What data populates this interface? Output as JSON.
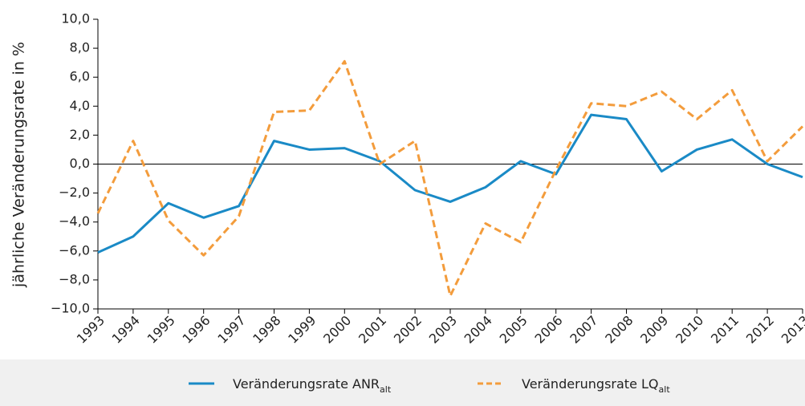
{
  "chart_data": {
    "type": "line",
    "y_label": "jährliche Veränderungsrate in %",
    "categories": [
      "1993",
      "1994",
      "1995",
      "1996",
      "1997",
      "1998",
      "1999",
      "2000",
      "2001",
      "2002",
      "2003",
      "2004",
      "2005",
      "2006",
      "2007",
      "2008",
      "2009",
      "2010",
      "2011",
      "2012",
      "2013"
    ],
    "series": [
      {
        "name": "Veränderungsrate ANR",
        "name_sub": "alt",
        "color": "#1a8ac6",
        "dash": false,
        "values": [
          -6.1,
          -5.0,
          -2.7,
          -3.7,
          -2.9,
          1.6,
          1.0,
          1.1,
          0.2,
          -1.8,
          -2.6,
          -1.6,
          0.2,
          -0.7,
          3.4,
          3.1,
          -0.5,
          1.0,
          1.7,
          0.0,
          -0.9
        ]
      },
      {
        "name": "Veränderungsrate LQ",
        "name_sub": "alt",
        "color": "#f39c3c",
        "dash": true,
        "values": [
          -3.4,
          1.6,
          -3.9,
          -6.3,
          -3.6,
          3.6,
          3.7,
          7.1,
          0.0,
          1.6,
          -9.1,
          -4.1,
          -5.4,
          -0.4,
          4.2,
          4.0,
          5.0,
          3.1,
          5.1,
          0.2,
          2.6
        ]
      }
    ],
    "ylim": [
      -10,
      10
    ],
    "yticks": [
      {
        "value": -10,
        "label": "−10,0"
      },
      {
        "value": -8,
        "label": "−8,0"
      },
      {
        "value": -6,
        "label": "−6,0"
      },
      {
        "value": -4,
        "label": "−4,0"
      },
      {
        "value": -2,
        "label": "−2,0"
      },
      {
        "value": 0,
        "label": "0,0"
      },
      {
        "value": 2,
        "label": "2,0"
      },
      {
        "value": 4,
        "label": "4,0"
      },
      {
        "value": 6,
        "label": "6,0"
      },
      {
        "value": 8,
        "label": "8,0"
      },
      {
        "value": 10,
        "label": "10,0"
      }
    ],
    "legend": "bottom"
  }
}
